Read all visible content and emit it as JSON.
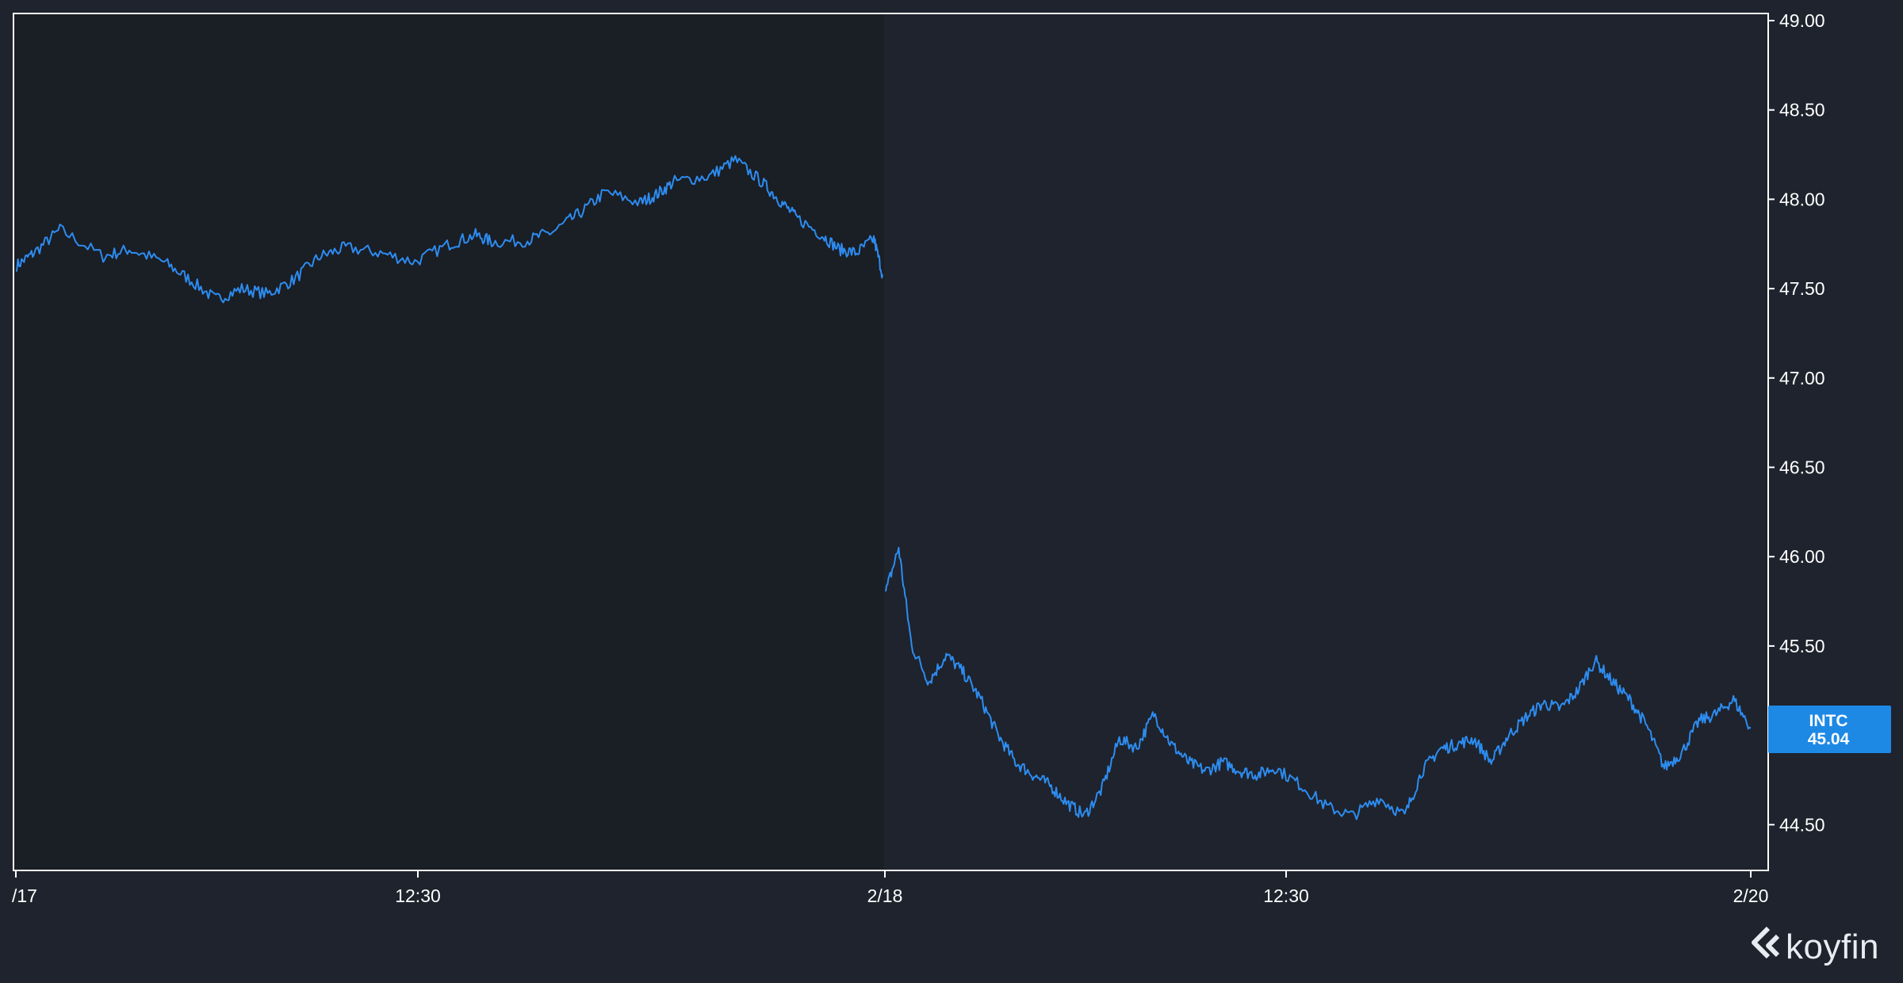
{
  "colors": {
    "background": "#1e232d",
    "session_shade": "#1a1e25",
    "line": "#2d8cf0",
    "badge": "#1e88e5",
    "axis": "#ffffff"
  },
  "badge": {
    "ticker": "INTC",
    "price": "45.04"
  },
  "brand": {
    "name": "koyfin",
    "icon": "koyfin-logo-icon"
  },
  "chart_data": {
    "type": "line",
    "ylim": [
      44.25,
      49.0
    ],
    "y_ticks": [
      "49.00",
      "48.50",
      "48.00",
      "47.50",
      "47.00",
      "46.50",
      "46.00",
      "45.50",
      "44.50"
    ],
    "x_ticks": [
      "/17",
      "12:30",
      "2/18",
      "12:30",
      "2/20"
    ],
    "grid": false,
    "series": [
      {
        "session": "2/17",
        "x": [
          0,
          0.02,
          0.05,
          0.1,
          0.13,
          0.17,
          0.2,
          0.23,
          0.26,
          0.29,
          0.32,
          0.35,
          0.38,
          0.42,
          0.46,
          0.5,
          0.53,
          0.55,
          0.59,
          0.62,
          0.65,
          0.68,
          0.72,
          0.74,
          0.76,
          0.8,
          0.83,
          0.86,
          0.88,
          0.9,
          0.93,
          0.95,
          0.97,
          0.99,
          1.0
        ],
        "values": [
          47.63,
          47.7,
          47.83,
          47.68,
          47.72,
          47.65,
          47.55,
          47.44,
          47.5,
          47.47,
          47.55,
          47.68,
          47.73,
          47.7,
          47.65,
          47.75,
          47.8,
          47.76,
          47.77,
          47.82,
          47.92,
          48.04,
          47.98,
          48.03,
          48.1,
          48.13,
          48.22,
          48.1,
          48.0,
          47.9,
          47.8,
          47.72,
          47.7,
          47.78,
          47.58
        ]
      },
      {
        "session": "2/18",
        "x": [
          0,
          0.015,
          0.03,
          0.05,
          0.07,
          0.09,
          0.11,
          0.13,
          0.15,
          0.17,
          0.19,
          0.21,
          0.23,
          0.25,
          0.27,
          0.29,
          0.31,
          0.33,
          0.35,
          0.37,
          0.39,
          0.41,
          0.43,
          0.45,
          0.48,
          0.51,
          0.54,
          0.57,
          0.6,
          0.62,
          0.64,
          0.66,
          0.68,
          0.7,
          0.72,
          0.74,
          0.76,
          0.78,
          0.8,
          0.82,
          0.84,
          0.86,
          0.88,
          0.9,
          0.92,
          0.94,
          0.96,
          0.98,
          1.0
        ],
        "values": [
          45.8,
          46.05,
          45.5,
          45.3,
          45.45,
          45.35,
          45.2,
          45.0,
          44.85,
          44.78,
          44.72,
          44.62,
          44.55,
          44.7,
          44.98,
          44.93,
          45.12,
          44.95,
          44.85,
          44.8,
          44.85,
          44.8,
          44.78,
          44.82,
          44.72,
          44.6,
          44.55,
          44.65,
          44.55,
          44.8,
          44.92,
          44.95,
          44.98,
          44.85,
          45.0,
          45.1,
          45.18,
          45.15,
          45.25,
          45.42,
          45.3,
          45.2,
          45.05,
          44.82,
          44.9,
          45.08,
          45.12,
          45.2,
          45.04
        ]
      }
    ]
  }
}
